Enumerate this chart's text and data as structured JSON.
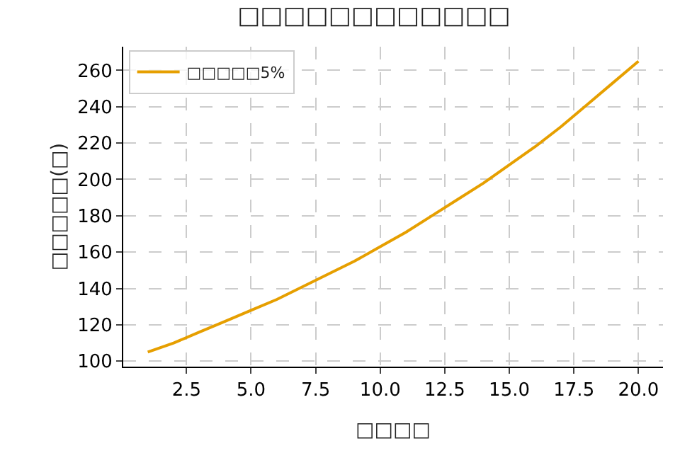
{
  "chart_data": {
    "type": "line",
    "title": "□□□□□□□□□□□□",
    "xlabel": "□□□□",
    "ylabel": "□□□□□(□)",
    "x": [
      1,
      2,
      3,
      4,
      5,
      6,
      7,
      8,
      9,
      10,
      11,
      12,
      13,
      14,
      15,
      16,
      17,
      18,
      19,
      20
    ],
    "series": [
      {
        "name": "□□□□□5%",
        "color": "#e69f00",
        "values": [
          105,
          110,
          116,
          122,
          128,
          134,
          141,
          148,
          155,
          163,
          171,
          180,
          189,
          198,
          208,
          218,
          229,
          241,
          253,
          265
        ]
      }
    ],
    "xlim": [
      0.05,
      20.95
    ],
    "xticks": [
      {
        "value": 2.5,
        "label": "2.5"
      },
      {
        "value": 5,
        "label": "5.0"
      },
      {
        "value": 7.5,
        "label": "7.5"
      },
      {
        "value": 10,
        "label": "10.0"
      },
      {
        "value": 12.5,
        "label": "12.5"
      },
      {
        "value": 15,
        "label": "15.0"
      },
      {
        "value": 17.5,
        "label": "17.5"
      },
      {
        "value": 20,
        "label": "20.0"
      }
    ],
    "ylim": [
      97,
      273
    ],
    "yticks": [
      100,
      120,
      140,
      160,
      180,
      200,
      220,
      240,
      260
    ],
    "grid": true,
    "legend": "top left",
    "marker": "none",
    "line_style": "solid"
  }
}
